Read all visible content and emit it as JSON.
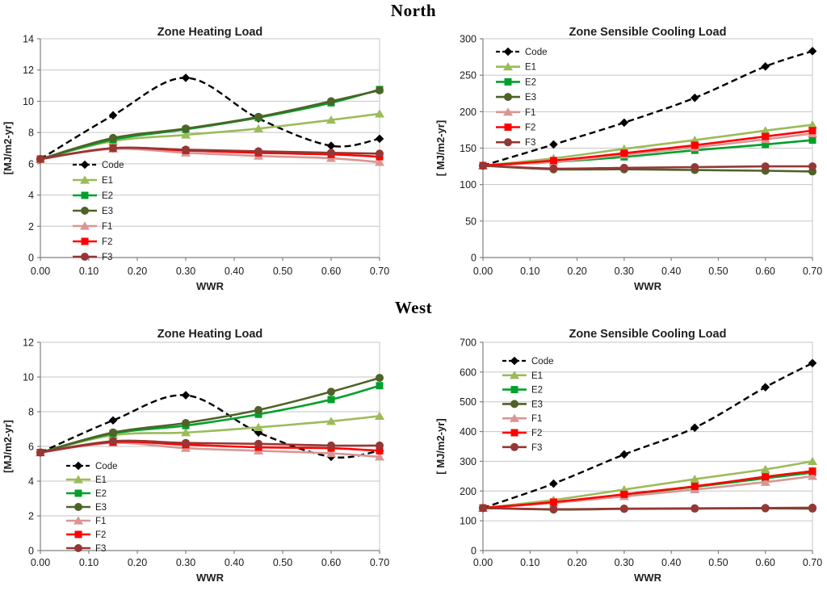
{
  "page": {
    "background": "#ffffff"
  },
  "sections": [
    {
      "title": "North"
    },
    {
      "title": "West"
    }
  ],
  "palette": {
    "grid": "#c6c6c6",
    "axis": "#808080",
    "tick_label": "#1a1a1a",
    "title_color": "#1f1f1f",
    "section_title_color": "#000000"
  },
  "chart_data": [
    {
      "orientation": "North",
      "title": "Zone Heating Load",
      "type": "line",
      "xlabel": "WWR",
      "ylabel": "[MJ/m2-yr]",
      "x": [
        0.0,
        0.15,
        0.3,
        0.45,
        0.6,
        0.7
      ],
      "xlim": [
        0,
        0.7
      ],
      "xtick_labels": [
        "0.00",
        "0.10",
        "0.20",
        "0.30",
        "0.40",
        "0.50",
        "0.60",
        "0.70"
      ],
      "ylim": [
        0,
        14
      ],
      "yticks": [
        0,
        2,
        4,
        6,
        8,
        10,
        12,
        14
      ],
      "grid": "horizontal",
      "legend_position": "inside-left-lower",
      "series": [
        {
          "name": "Code",
          "color": "#000000",
          "marker": "diamond",
          "dashed": true,
          "values": [
            6.3,
            9.1,
            11.5,
            8.9,
            7.15,
            7.6
          ]
        },
        {
          "name": "E1",
          "color": "#9bbb59",
          "marker": "triangle",
          "dashed": false,
          "values": [
            6.3,
            7.45,
            7.85,
            8.25,
            8.8,
            9.2
          ]
        },
        {
          "name": "E2",
          "color": "#00a02a",
          "marker": "square",
          "dashed": false,
          "values": [
            6.3,
            7.55,
            8.2,
            8.95,
            9.9,
            10.75
          ]
        },
        {
          "name": "E3",
          "color": "#4f6228",
          "marker": "circle",
          "dashed": false,
          "values": [
            6.3,
            7.65,
            8.25,
            9.0,
            10.0,
            10.7
          ]
        },
        {
          "name": "F1",
          "color": "#d99694",
          "marker": "triangle",
          "dashed": false,
          "values": [
            6.3,
            6.95,
            6.7,
            6.5,
            6.35,
            6.1
          ]
        },
        {
          "name": "F2",
          "color": "#ff0000",
          "marker": "square",
          "dashed": false,
          "values": [
            6.3,
            7.0,
            6.85,
            6.7,
            6.6,
            6.45
          ]
        },
        {
          "name": "F3",
          "color": "#953735",
          "marker": "circle",
          "dashed": false,
          "values": [
            6.3,
            7.0,
            6.9,
            6.8,
            6.7,
            6.65
          ]
        }
      ]
    },
    {
      "orientation": "North",
      "title": "Zone Sensible Cooling Load",
      "type": "line",
      "xlabel": "WWR",
      "ylabel": "[ MJ/m2-yr]",
      "x": [
        0.0,
        0.15,
        0.3,
        0.45,
        0.6,
        0.7
      ],
      "xlim": [
        0,
        0.7
      ],
      "xtick_labels": [
        "0.00",
        "0.10",
        "0.20",
        "0.30",
        "0.40",
        "0.50",
        "0.60",
        "0.70"
      ],
      "ylim": [
        0,
        300
      ],
      "yticks": [
        0,
        50,
        100,
        150,
        200,
        250,
        300
      ],
      "grid": "horizontal",
      "legend_position": "inside-left-upper",
      "series": [
        {
          "name": "Code",
          "color": "#000000",
          "marker": "diamond",
          "dashed": true,
          "values": [
            126,
            155,
            185,
            219,
            262,
            283
          ]
        },
        {
          "name": "E1",
          "color": "#9bbb59",
          "marker": "triangle",
          "dashed": false,
          "values": [
            126,
            136,
            149,
            161,
            174,
            182
          ]
        },
        {
          "name": "E2",
          "color": "#00a02a",
          "marker": "square",
          "dashed": false,
          "values": [
            126,
            131,
            138,
            147,
            155,
            161
          ]
        },
        {
          "name": "E3",
          "color": "#4f6228",
          "marker": "circle",
          "dashed": false,
          "values": [
            126,
            121,
            121,
            120,
            119,
            118
          ]
        },
        {
          "name": "F1",
          "color": "#d99694",
          "marker": "triangle",
          "dashed": false,
          "values": [
            126,
            131,
            141,
            151,
            162,
            170
          ]
        },
        {
          "name": "F2",
          "color": "#ff0000",
          "marker": "square",
          "dashed": false,
          "values": [
            126,
            133,
            143,
            154,
            166,
            174
          ]
        },
        {
          "name": "F3",
          "color": "#953735",
          "marker": "circle",
          "dashed": false,
          "values": [
            126,
            122,
            123,
            124,
            125,
            125
          ]
        }
      ]
    },
    {
      "orientation": "West",
      "title": "Zone Heating Load",
      "type": "line",
      "xlabel": "WWR",
      "ylabel": "[MJ/m2-yr]",
      "x": [
        0.0,
        0.15,
        0.3,
        0.45,
        0.6,
        0.7
      ],
      "xlim": [
        0,
        0.7
      ],
      "xtick_labels": [
        "0.00",
        "0.10",
        "0.20",
        "0.30",
        "0.40",
        "0.50",
        "0.60",
        "0.70"
      ],
      "ylim": [
        0,
        12
      ],
      "yticks": [
        0,
        2,
        4,
        6,
        8,
        10,
        12
      ],
      "grid": "horizontal",
      "legend_position": "inside-left-lower",
      "series": [
        {
          "name": "Code",
          "color": "#000000",
          "marker": "diamond",
          "dashed": true,
          "values": [
            5.65,
            7.5,
            8.95,
            6.8,
            5.4,
            5.75
          ]
        },
        {
          "name": "E1",
          "color": "#9bbb59",
          "marker": "triangle",
          "dashed": false,
          "values": [
            5.65,
            6.65,
            6.8,
            7.1,
            7.45,
            7.75
          ]
        },
        {
          "name": "E2",
          "color": "#00a02a",
          "marker": "square",
          "dashed": false,
          "values": [
            5.65,
            6.75,
            7.2,
            7.85,
            8.7,
            9.5
          ]
        },
        {
          "name": "E3",
          "color": "#4f6228",
          "marker": "circle",
          "dashed": false,
          "values": [
            5.65,
            6.8,
            7.35,
            8.1,
            9.15,
            9.95
          ]
        },
        {
          "name": "F1",
          "color": "#d99694",
          "marker": "triangle",
          "dashed": false,
          "values": [
            5.65,
            6.2,
            5.9,
            5.75,
            5.6,
            5.4
          ]
        },
        {
          "name": "F2",
          "color": "#ff0000",
          "marker": "square",
          "dashed": false,
          "values": [
            5.65,
            6.25,
            6.1,
            5.95,
            5.9,
            5.75
          ]
        },
        {
          "name": "F3",
          "color": "#953735",
          "marker": "circle",
          "dashed": false,
          "values": [
            5.65,
            6.3,
            6.2,
            6.15,
            6.05,
            6.05
          ]
        }
      ]
    },
    {
      "orientation": "West",
      "title": "Zone Sensible Cooling Load",
      "type": "line",
      "xlabel": "WWR",
      "ylabel": "[ MJ/m2-yr]",
      "x": [
        0.0,
        0.15,
        0.3,
        0.45,
        0.6,
        0.7
      ],
      "xlim": [
        0,
        0.7
      ],
      "xtick_labels": [
        "0.00",
        "0.10",
        "0.20",
        "0.30",
        "0.40",
        "0.50",
        "0.60",
        "0.70"
      ],
      "ylim": [
        0,
        700
      ],
      "yticks": [
        0,
        100,
        200,
        300,
        400,
        500,
        600,
        700
      ],
      "grid": "horizontal",
      "legend_position": "inside-left-upper",
      "series": [
        {
          "name": "Code",
          "color": "#000000",
          "marker": "diamond",
          "dashed": true,
          "values": [
            143,
            225,
            323,
            413,
            549,
            630
          ]
        },
        {
          "name": "E1",
          "color": "#9bbb59",
          "marker": "triangle",
          "dashed": false,
          "values": [
            143,
            170,
            205,
            240,
            273,
            300
          ]
        },
        {
          "name": "E2",
          "color": "#00a02a",
          "marker": "square",
          "dashed": false,
          "values": [
            143,
            162,
            188,
            214,
            243,
            262
          ]
        },
        {
          "name": "E3",
          "color": "#4f6228",
          "marker": "circle",
          "dashed": false,
          "values": [
            143,
            138,
            140,
            141,
            142,
            141
          ]
        },
        {
          "name": "F1",
          "color": "#d99694",
          "marker": "triangle",
          "dashed": false,
          "values": [
            143,
            160,
            182,
            205,
            230,
            250
          ]
        },
        {
          "name": "F2",
          "color": "#ff0000",
          "marker": "square",
          "dashed": false,
          "values": [
            143,
            163,
            189,
            216,
            248,
            267
          ]
        },
        {
          "name": "F3",
          "color": "#953735",
          "marker": "circle",
          "dashed": false,
          "values": [
            143,
            139,
            141,
            142,
            143,
            144
          ]
        }
      ]
    }
  ]
}
